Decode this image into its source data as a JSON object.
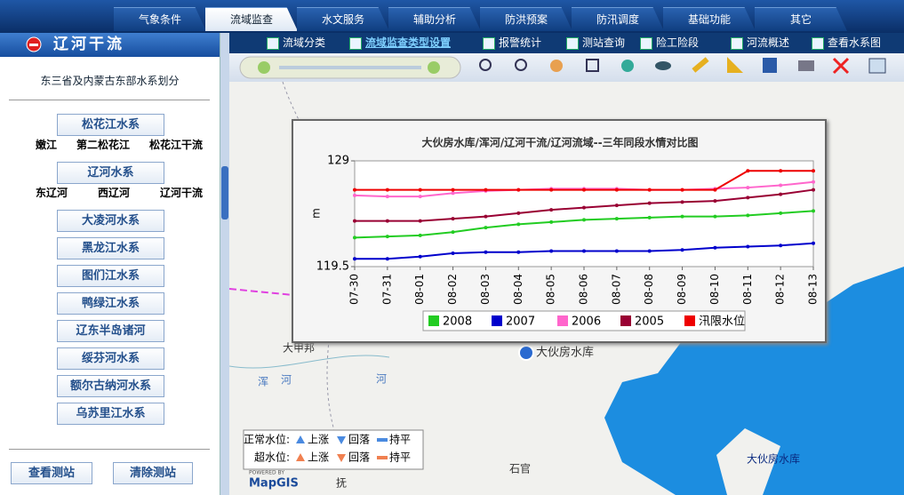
{
  "tabs": [
    "气象条件",
    "流域监查",
    "水文服务",
    "辅助分析",
    "防洪预案",
    "防汛调度",
    "基础功能",
    "其它"
  ],
  "sidebar": {
    "title": "辽河干流",
    "subtitle": "东三省及内蒙古东部水系划分",
    "groups": [
      {
        "label": "松花江水系",
        "links": [
          "嫩江",
          "第二松花江",
          "松花江干流"
        ]
      },
      {
        "label": "辽河水系",
        "links": [
          "东辽河",
          "西辽河",
          "辽河干流"
        ]
      },
      {
        "label": "大凌河水系"
      },
      {
        "label": "黑龙江水系"
      },
      {
        "label": "图们江水系"
      },
      {
        "label": "鸭绿江水系"
      },
      {
        "label": "辽东半岛诸河"
      },
      {
        "label": "绥芬河水系"
      },
      {
        "label": "额尔古纳河水系"
      },
      {
        "label": "乌苏里江水系"
      }
    ],
    "buttons": [
      "查看测站",
      "清除测站"
    ]
  },
  "menu": [
    "流域分类",
    "流域监查类型设置",
    "报警统计",
    "测站查询",
    "险工险段",
    "河流概述",
    "查看水系图"
  ],
  "map": {
    "labels": [
      "大甲邦",
      "浑",
      "河",
      "河",
      "大伙房水库",
      "石官",
      "大伙房水库",
      "抚"
    ],
    "legend": [
      {
        "label": "正常水位:",
        "items": [
          "上涨",
          "回落",
          "持平"
        ]
      },
      {
        "label": "超水位:",
        "items": [
          "上涨",
          "回落",
          "持平"
        ]
      }
    ],
    "powered": "POWERED BY",
    "logo": "MapGIS"
  },
  "chart_data": {
    "type": "line",
    "title": "大伙房水库/浑河/辽河干流/辽河流域--三年同段水情对比图",
    "y_label": "m",
    "categories": [
      "07-30",
      "07-31",
      "08-01",
      "08-02",
      "08-03",
      "08-04",
      "08-05",
      "08-06",
      "08-07",
      "08-08",
      "08-09",
      "08-10",
      "08-11",
      "08-12",
      "08-13"
    ],
    "ylim": [
      119.5,
      129
    ],
    "yticks": [
      119.5,
      129
    ],
    "series": [
      {
        "name": "2008",
        "color": "#22cc22",
        "values": [
          122.1,
          122.2,
          122.3,
          122.6,
          123.0,
          123.3,
          123.5,
          123.7,
          123.8,
          123.9,
          124.0,
          124.0,
          124.1,
          124.3,
          124.5
        ]
      },
      {
        "name": "2007",
        "color": "#0000cc",
        "values": [
          120.2,
          120.2,
          120.4,
          120.7,
          120.8,
          120.8,
          120.9,
          120.9,
          120.9,
          120.9,
          121.0,
          121.2,
          121.3,
          121.4,
          121.6
        ]
      },
      {
        "name": "2006",
        "color": "#ff66cc",
        "values": [
          125.9,
          125.8,
          125.8,
          126.1,
          126.3,
          126.4,
          126.5,
          126.5,
          126.5,
          126.4,
          126.4,
          126.5,
          126.6,
          126.8,
          127.1
        ]
      },
      {
        "name": "2005",
        "color": "#990033",
        "values": [
          123.6,
          123.6,
          123.6,
          123.8,
          124.0,
          124.3,
          124.6,
          124.8,
          125.0,
          125.2,
          125.3,
          125.4,
          125.7,
          126.0,
          126.4
        ]
      },
      {
        "name": "汛限水位",
        "color": "#ee0000",
        "values": [
          126.4,
          126.4,
          126.4,
          126.4,
          126.4,
          126.4,
          126.4,
          126.4,
          126.4,
          126.4,
          126.4,
          126.4,
          128.1,
          128.1,
          128.1
        ]
      }
    ]
  }
}
